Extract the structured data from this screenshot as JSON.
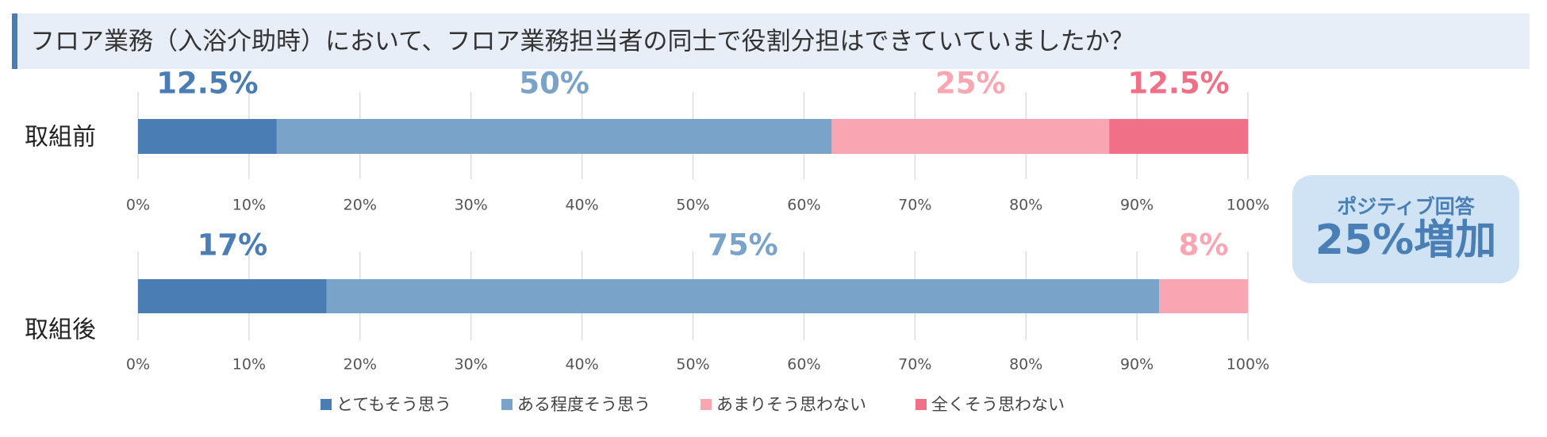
{
  "chart_data": {
    "type": "bar",
    "orientation": "horizontal",
    "stacked": true,
    "title": "フロア業務（入浴介助時）において、フロア業務担当者の同士で役割分担はできていていましたか？",
    "categories": [
      "取組前",
      "取組後"
    ],
    "series": [
      {
        "name": "とてもそう思う",
        "color": "#4a7db3",
        "values": [
          12.5,
          17
        ],
        "value_labels": [
          "12.5%",
          "17%"
        ]
      },
      {
        "name": "ある程度そう思う",
        "color": "#7aa3c9",
        "values": [
          50,
          75
        ],
        "value_labels": [
          "50%",
          "75%"
        ]
      },
      {
        "name": "あまりそう思わない",
        "color": "#f7a6b2",
        "values": [
          25,
          8
        ],
        "value_labels": [
          "25%",
          "8%"
        ]
      },
      {
        "name": "全くそう思わない",
        "color": "#f07088",
        "values": [
          12.5,
          null
        ],
        "value_labels": [
          "12.5%",
          null
        ]
      }
    ],
    "xlim": [
      0,
      100
    ],
    "xticks": [
      {
        "value": 0,
        "label": "0%"
      },
      {
        "value": 10,
        "label": "10%"
      },
      {
        "value": 20,
        "label": "20%"
      },
      {
        "value": 30,
        "label": "30%"
      },
      {
        "value": 40,
        "label": "40%"
      },
      {
        "value": 50,
        "label": "50%"
      },
      {
        "value": 60,
        "label": "60%"
      },
      {
        "value": 70,
        "label": "70%"
      },
      {
        "value": 80,
        "label": "80%"
      },
      {
        "value": 90,
        "label": "90%"
      },
      {
        "value": 100,
        "label": "100%"
      }
    ],
    "grid": true,
    "legend": "bottom",
    "annotations": [
      "ポジティブ回答",
      "25%増加"
    ]
  }
}
